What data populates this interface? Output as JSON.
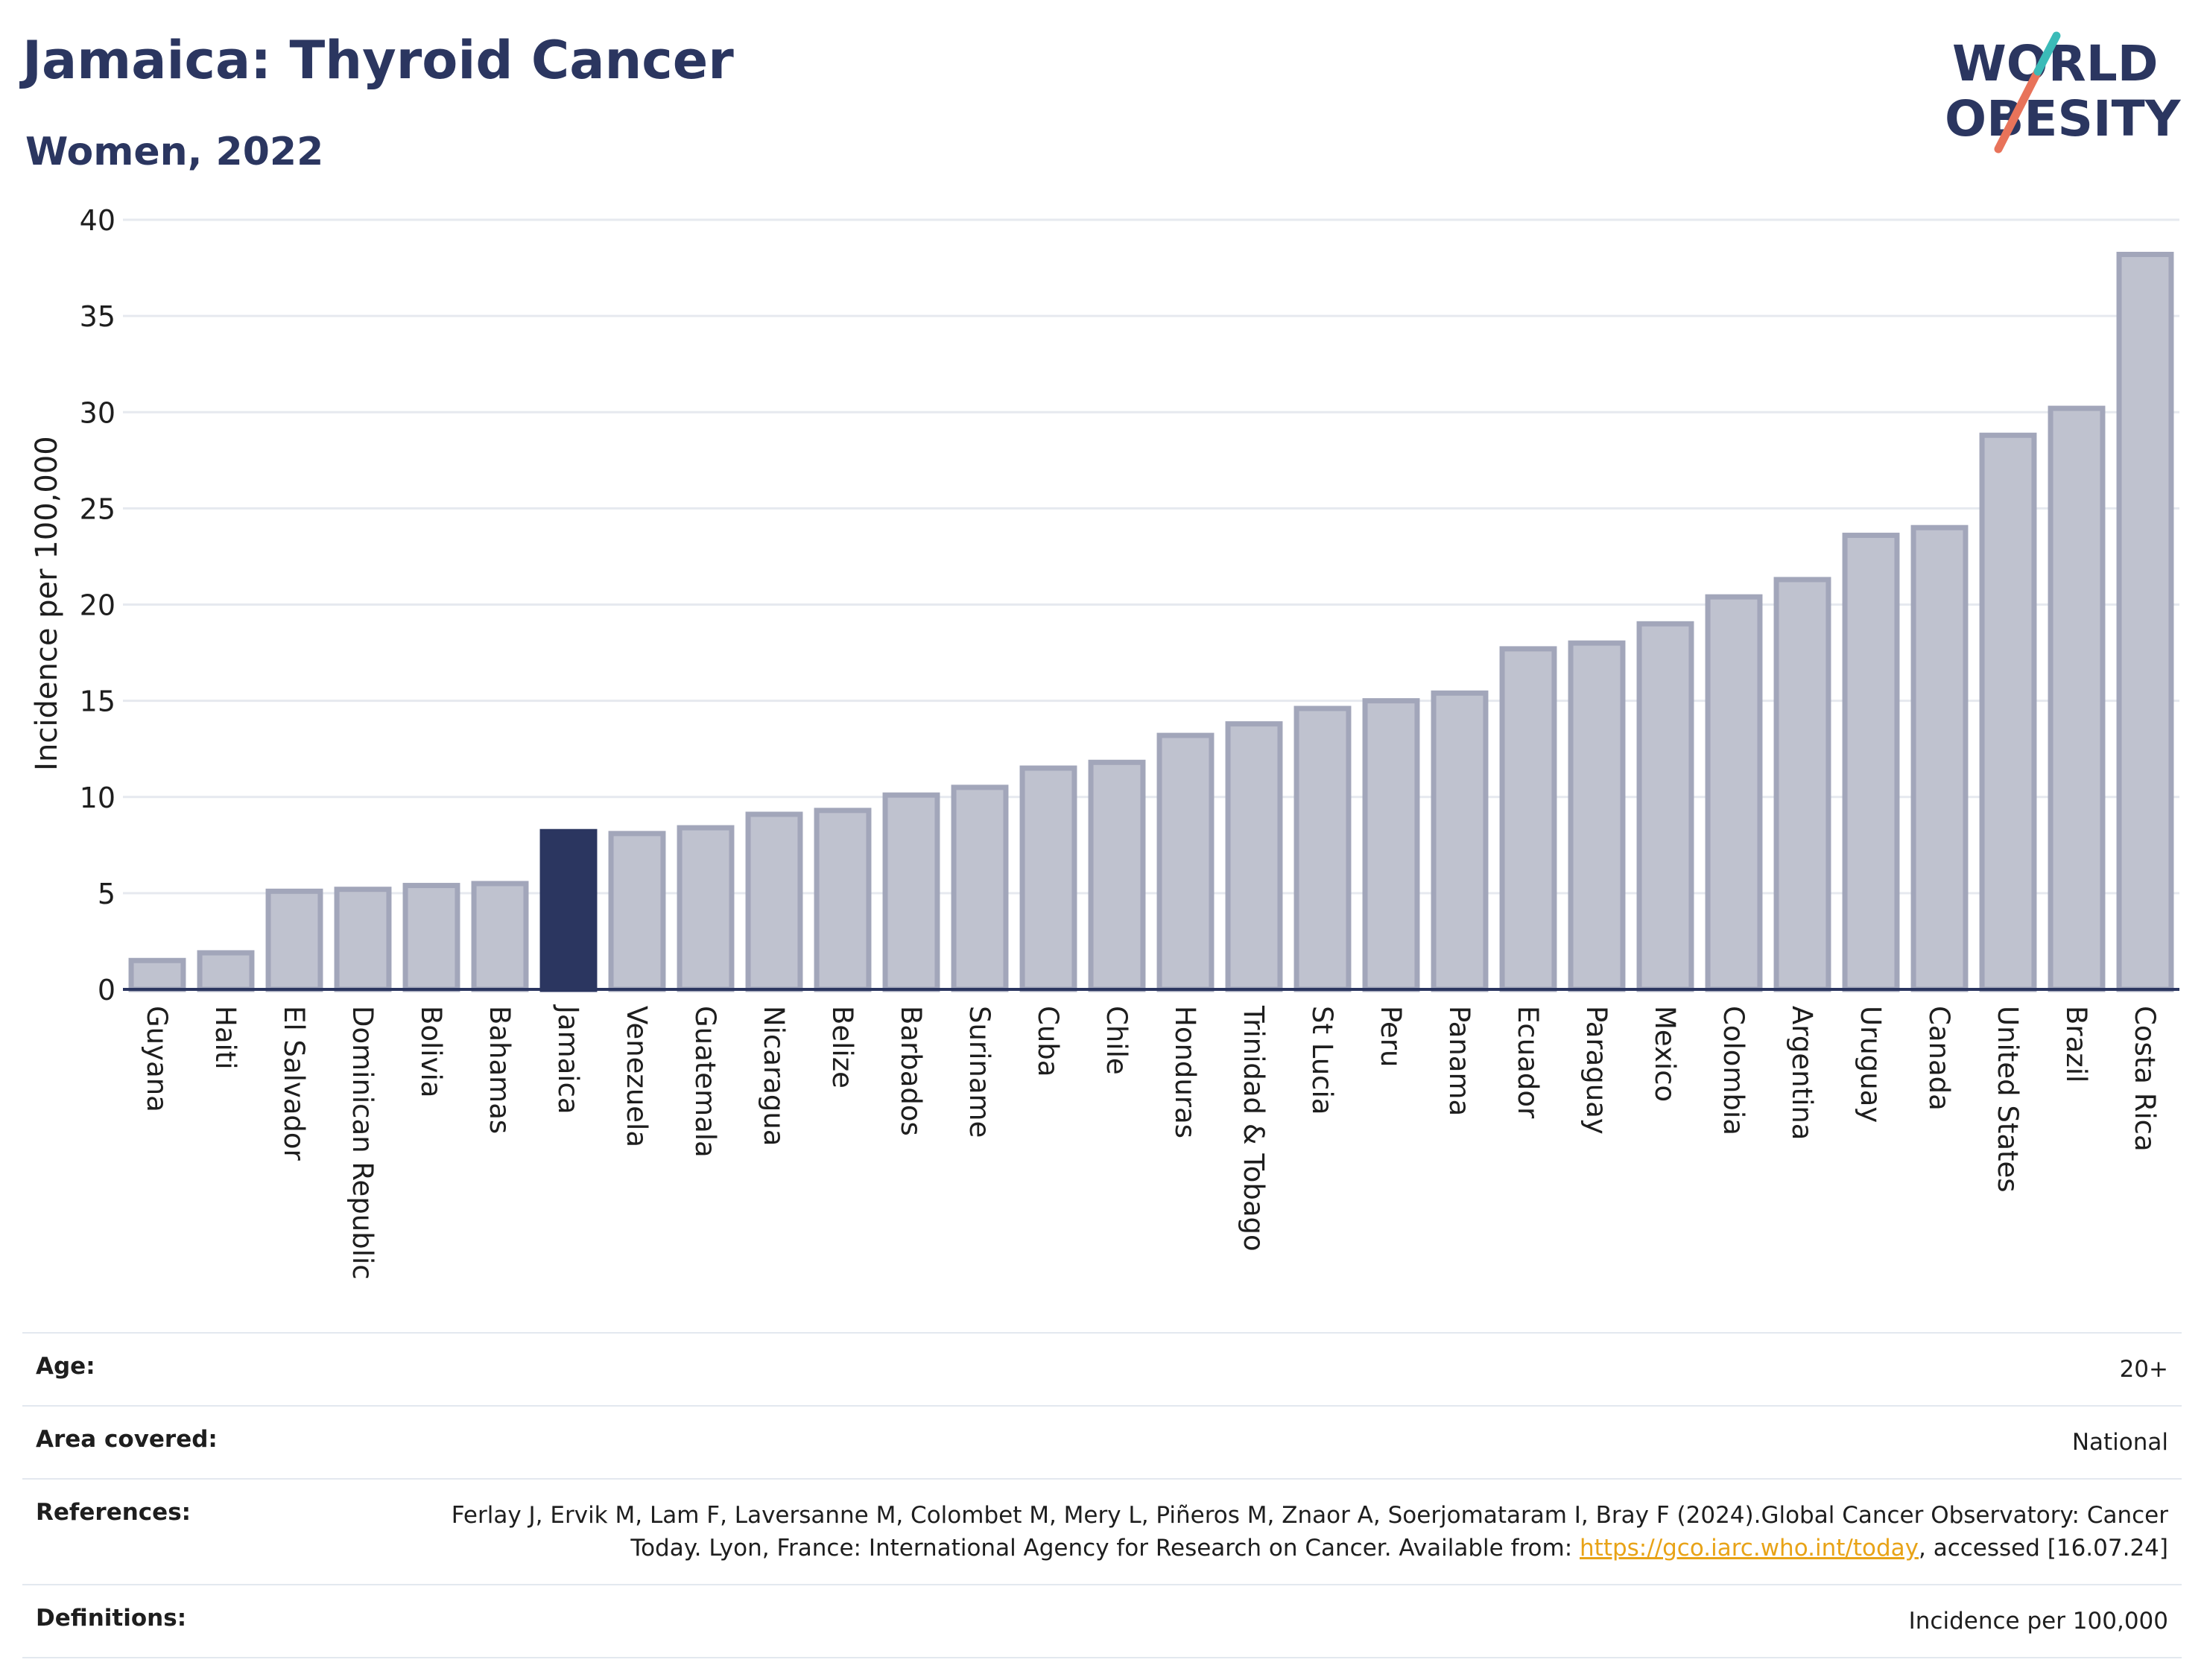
{
  "header": {
    "title": "Jamaica: Thyroid Cancer",
    "subtitle": "Women, 2022"
  },
  "logo": {
    "line1": "WORLD",
    "line2": "OBESITY"
  },
  "colors": {
    "highlight": "#2b3660",
    "bar_fill": "#bfc2cf",
    "bar_stroke": "#a2a6ba",
    "grid": "#e6e9ef",
    "accent_link": "#e8a317"
  },
  "chart_data": {
    "type": "bar",
    "ylabel": "Incidence per 100,000",
    "ylim": [
      0,
      40
    ],
    "yticks": [
      0,
      5,
      10,
      15,
      20,
      25,
      30,
      35,
      40
    ],
    "highlight": "Jamaica",
    "grid": true,
    "categories": [
      "Guyana",
      "Haiti",
      "El Salvador",
      "Dominican Republic",
      "Bolivia",
      "Bahamas",
      "Jamaica",
      "Venezuela",
      "Guatemala",
      "Nicaragua",
      "Belize",
      "Barbados",
      "Suriname",
      "Cuba",
      "Chile",
      "Honduras",
      "Trinidad & Tobago",
      "St Lucia",
      "Peru",
      "Panama",
      "Ecuador",
      "Paraguay",
      "Mexico",
      "Colombia",
      "Argentina",
      "Uruguay",
      "Canada",
      "United States",
      "Brazil",
      "Costa Rica"
    ],
    "values": [
      1.5,
      1.9,
      5.1,
      5.2,
      5.4,
      5.5,
      8.2,
      8.1,
      8.4,
      9.1,
      9.3,
      10.1,
      10.5,
      11.5,
      11.8,
      13.2,
      13.8,
      14.6,
      15.0,
      15.4,
      17.7,
      18.0,
      19.0,
      20.4,
      21.3,
      23.6,
      24.0,
      28.8,
      30.2,
      38.2
    ]
  },
  "info": {
    "age_label": "Age:",
    "age_value": "20+",
    "area_label": "Area covered:",
    "area_value": "National",
    "references_label": "References:",
    "references_text1": "Ferlay J, Ervik M, Lam F, Laversanne M, Colombet M, Mery L, Piñeros M, Znaor A, Soerjomataram I, Bray F (2024).Global Cancer Observatory: Cancer Today. Lyon, France: International Agency for Research on Cancer. Available from: ",
    "references_link": "https://gco.iarc.who.int/today",
    "references_text2": ", accessed [16.07.24]",
    "definitions_label": "Definitions:",
    "definitions_value": "Incidence per 100,000"
  }
}
